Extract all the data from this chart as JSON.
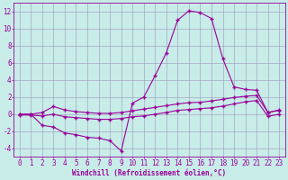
{
  "background_color": "#c8ece8",
  "grid_color": "#9999bb",
  "line_color": "#990099",
  "marker": "+",
  "markersize": 3,
  "linewidth": 0.8,
  "xlabel": "Windchill (Refroidissement éolien,°C)",
  "xlabel_fontsize": 5.5,
  "tick_fontsize": 5.5,
  "xlim_min": -0.5,
  "xlim_max": 23.5,
  "ylim_min": -5,
  "ylim_max": 13,
  "yticks": [
    -4,
    -2,
    0,
    2,
    4,
    6,
    8,
    10,
    12
  ],
  "xticks": [
    0,
    1,
    2,
    3,
    4,
    5,
    6,
    7,
    8,
    9,
    10,
    11,
    12,
    13,
    14,
    15,
    16,
    17,
    18,
    19,
    20,
    21,
    22,
    23
  ],
  "series1_x": [
    0,
    1,
    2,
    3,
    4,
    5,
    6,
    7,
    8,
    9,
    10,
    11,
    12,
    13,
    14,
    15,
    16,
    17,
    18,
    19,
    20,
    21,
    22,
    23
  ],
  "series1_y": [
    0.0,
    0.0,
    -1.3,
    -1.5,
    -2.2,
    -2.4,
    -2.7,
    -2.8,
    -3.1,
    -4.3,
    1.3,
    2.0,
    4.5,
    7.2,
    11.0,
    12.1,
    11.9,
    11.2,
    6.5,
    3.2,
    2.9,
    2.8,
    0.2,
    0.5
  ],
  "series2_x": [
    0,
    1,
    2,
    3,
    4,
    5,
    6,
    7,
    8,
    9,
    10,
    11,
    12,
    13,
    14,
    15,
    16,
    17,
    18,
    19,
    20,
    21,
    22,
    23
  ],
  "series2_y": [
    0.0,
    0.0,
    0.2,
    0.9,
    0.5,
    0.3,
    0.2,
    0.1,
    0.1,
    0.2,
    0.4,
    0.6,
    0.8,
    1.0,
    1.2,
    1.35,
    1.4,
    1.55,
    1.75,
    1.95,
    2.1,
    2.2,
    0.2,
    0.45
  ],
  "series3_x": [
    0,
    1,
    2,
    3,
    4,
    5,
    6,
    7,
    8,
    9,
    10,
    11,
    12,
    13,
    14,
    15,
    16,
    17,
    18,
    19,
    20,
    21,
    22,
    23
  ],
  "series3_y": [
    -0.1,
    -0.1,
    -0.2,
    0.0,
    -0.3,
    -0.4,
    -0.5,
    -0.6,
    -0.6,
    -0.5,
    -0.3,
    -0.2,
    0.0,
    0.2,
    0.45,
    0.55,
    0.65,
    0.75,
    0.95,
    1.2,
    1.45,
    1.6,
    -0.25,
    0.0
  ]
}
